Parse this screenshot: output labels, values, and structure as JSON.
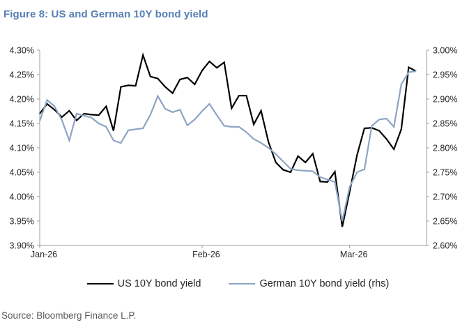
{
  "title": "Figure 8: US and German 10Y bond yield",
  "source": "Source: Bloomberg Finance L.P.",
  "colors": {
    "title": "#5580b4",
    "us_line": "#000000",
    "german_line": "#8da5c4",
    "axis_line": "#9c9c9c",
    "tick_label": "#262626",
    "source_text": "#595959"
  },
  "legend": [
    {
      "label": "US 10Y bond yield",
      "color": "#000000"
    },
    {
      "label": "German 10Y bond yield (rhs)",
      "color": "#8da5c4"
    }
  ],
  "chart_data": {
    "type": "line",
    "title": "Figure 8: US and German 10Y bond yield",
    "x_tick_labels": [
      "Jan-26",
      "Feb-26",
      "Mar-26"
    ],
    "x_tick_indices": [
      0,
      22,
      42
    ],
    "left_axis": {
      "min": 3.9,
      "max": 4.3,
      "step": 0.05,
      "unit": "%"
    },
    "right_axis": {
      "min": 2.6,
      "max": 3.0,
      "step": 0.05,
      "unit": "%"
    },
    "grid": false,
    "legend_position": "bottom",
    "series": [
      {
        "name": "US 10Y bond yield",
        "axis": "left",
        "color": "#000000",
        "values": [
          4.17,
          4.19,
          4.178,
          4.163,
          4.176,
          4.156,
          4.17,
          4.168,
          4.167,
          4.185,
          4.135,
          4.225,
          4.228,
          4.227,
          4.29,
          4.246,
          4.242,
          4.225,
          4.212,
          4.24,
          4.244,
          4.23,
          4.258,
          4.277,
          4.264,
          4.275,
          4.181,
          4.207,
          4.207,
          4.148,
          4.176,
          4.112,
          4.07,
          4.055,
          4.05,
          4.083,
          4.07,
          4.088,
          4.031,
          4.03,
          4.051,
          3.938,
          4.01,
          4.085,
          4.14,
          4.141,
          4.135,
          4.118,
          4.097,
          4.138,
          4.265,
          4.257
        ]
      },
      {
        "name": "German 10Y bond yield (rhs)",
        "axis": "right",
        "color": "#8da5c4",
        "values": [
          2.855,
          2.898,
          2.885,
          2.857,
          2.815,
          2.87,
          2.866,
          2.862,
          2.85,
          2.843,
          2.815,
          2.81,
          2.836,
          2.838,
          2.84,
          2.868,
          2.906,
          2.88,
          2.873,
          2.878,
          2.846,
          2.858,
          2.875,
          2.89,
          2.867,
          2.845,
          2.843,
          2.843,
          2.832,
          2.818,
          2.81,
          2.8,
          2.787,
          2.772,
          2.757,
          2.754,
          2.753,
          2.752,
          2.74,
          2.735,
          2.73,
          2.65,
          2.72,
          2.75,
          2.756,
          2.845,
          2.858,
          2.86,
          2.843,
          2.93,
          2.955,
          2.957
        ]
      }
    ]
  }
}
